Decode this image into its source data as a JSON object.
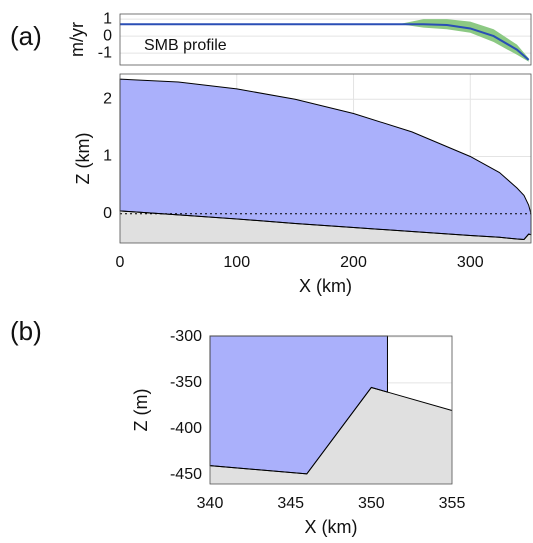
{
  "chart_data": [
    {
      "type": "line",
      "panel_label": "(a)",
      "ylabel": "m/yr",
      "annotation": "SMB profile",
      "xlim": [
        0,
        352
      ],
      "ylim": [
        -1.7,
        1.3
      ],
      "yticks": [
        -1,
        0,
        1
      ],
      "grid": true,
      "x": [
        0,
        50,
        100,
        150,
        200,
        240,
        260,
        280,
        300,
        320,
        340,
        350
      ],
      "series": [
        {
          "color": "#2a4fb5",
          "values": [
            0.7,
            0.7,
            0.7,
            0.7,
            0.7,
            0.7,
            0.7,
            0.65,
            0.45,
            0.0,
            -0.8,
            -1.4
          ]
        }
      ],
      "band": {
        "color": "#8cc983",
        "lower": [
          0.7,
          0.7,
          0.7,
          0.7,
          0.7,
          0.7,
          0.5,
          0.4,
          0.2,
          -0.35,
          -1.1,
          -1.5
        ],
        "upper": [
          0.7,
          0.7,
          0.7,
          0.7,
          0.7,
          0.72,
          1.0,
          1.0,
          0.85,
          0.4,
          -0.5,
          -1.3
        ]
      }
    },
    {
      "type": "area",
      "xlabel": "X (km)",
      "ylabel": "Z (km)",
      "xlim": [
        0,
        352
      ],
      "ylim": [
        -0.51,
        2.44
      ],
      "xticks": [
        0,
        100,
        200,
        300
      ],
      "yticks": [
        0,
        1,
        2
      ],
      "grid": true,
      "x": [
        0,
        50,
        100,
        150,
        200,
        250,
        300,
        325,
        340,
        346,
        350,
        352
      ],
      "surface": [
        2.35,
        2.3,
        2.18,
        2.0,
        1.75,
        1.43,
        1.0,
        0.72,
        0.45,
        0.32,
        0.15,
        0
      ],
      "bed": [
        0.05,
        -0.02,
        -0.09,
        -0.17,
        -0.24,
        -0.31,
        -0.38,
        -0.41,
        -0.44,
        -0.449,
        -0.355,
        -0.365
      ],
      "ice_color": "#aab0fb",
      "bed_color": "#e0e0e0",
      "sea_level": 0
    },
    {
      "type": "area",
      "panel_label": "(b)",
      "xlabel": "X (km)",
      "ylabel": "Z (m)",
      "xlim": [
        340,
        355
      ],
      "ylim": [
        -460,
        -299
      ],
      "xticks": [
        340,
        345,
        350,
        355
      ],
      "yticks": [
        -450,
        -400,
        -350,
        -300
      ],
      "grid": true,
      "x": [
        340,
        346,
        350,
        351,
        355
      ],
      "bed": [
        -440,
        -449,
        -355,
        -360,
        -380
      ],
      "ice_front": 351,
      "ice_color": "#aab0fb",
      "bed_color": "#e0e0e0"
    }
  ]
}
